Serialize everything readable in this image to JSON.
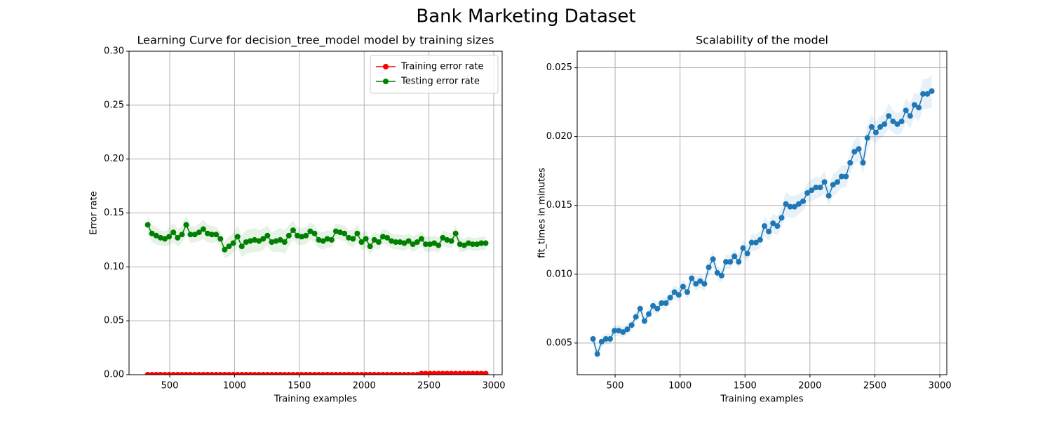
{
  "title": "Bank Marketing Dataset",
  "chart_data": [
    {
      "type": "line",
      "title": "Learning Curve for decision_tree_model model by training sizes",
      "xlabel": "Training examples",
      "ylabel": "Error rate",
      "x": [
        330,
        363,
        396,
        429,
        462,
        495,
        528,
        561,
        594,
        627,
        660,
        693,
        726,
        759,
        792,
        825,
        858,
        891,
        924,
        957,
        990,
        1023,
        1056,
        1089,
        1122,
        1155,
        1188,
        1221,
        1254,
        1287,
        1320,
        1353,
        1386,
        1419,
        1452,
        1485,
        1518,
        1551,
        1584,
        1617,
        1650,
        1683,
        1716,
        1749,
        1782,
        1815,
        1848,
        1881,
        1914,
        1947,
        1980,
        2013,
        2046,
        2079,
        2112,
        2145,
        2178,
        2211,
        2244,
        2277,
        2310,
        2343,
        2376,
        2409,
        2442,
        2475,
        2508,
        2541,
        2574,
        2607,
        2640,
        2673,
        2706,
        2739,
        2772,
        2805,
        2838,
        2871,
        2904,
        2938
      ],
      "series": [
        {
          "name": "Training error rate",
          "color": "#ff0000",
          "values": [
            0,
            0,
            0,
            0,
            0,
            0,
            0,
            0,
            0,
            0,
            0,
            0,
            0,
            0,
            0,
            0,
            0,
            0,
            0,
            0,
            0,
            0,
            0,
            0,
            0,
            0,
            0,
            0,
            0,
            0,
            0,
            0,
            0,
            0,
            0,
            0,
            0,
            0,
            0,
            0,
            0,
            0,
            0,
            0,
            0,
            0,
            0,
            0,
            0,
            0,
            0,
            0,
            0,
            0,
            0,
            0,
            0,
            0,
            0,
            0,
            0,
            0,
            0,
            0,
            0.001,
            0.001,
            0.001,
            0.001,
            0.001,
            0.001,
            0.001,
            0.001,
            0.001,
            0.001,
            0.001,
            0.001,
            0.001,
            0.001,
            0.001,
            0.001
          ]
        },
        {
          "name": "Testing error rate",
          "color": "#008000",
          "values": [
            0.139,
            0.131,
            0.129,
            0.127,
            0.126,
            0.128,
            0.132,
            0.127,
            0.13,
            0.139,
            0.13,
            0.13,
            0.132,
            0.135,
            0.131,
            0.13,
            0.13,
            0.126,
            0.116,
            0.119,
            0.122,
            0.128,
            0.119,
            0.123,
            0.124,
            0.125,
            0.124,
            0.126,
            0.129,
            0.123,
            0.124,
            0.125,
            0.123,
            0.129,
            0.134,
            0.129,
            0.128,
            0.129,
            0.133,
            0.131,
            0.125,
            0.124,
            0.126,
            0.125,
            0.133,
            0.132,
            0.131,
            0.127,
            0.126,
            0.131,
            0.123,
            0.126,
            0.119,
            0.125,
            0.123,
            0.128,
            0.127,
            0.124,
            0.123,
            0.123,
            0.122,
            0.124,
            0.121,
            0.123,
            0.126,
            0.121,
            0.121,
            0.122,
            0.12,
            0.127,
            0.125,
            0.124,
            0.131,
            0.121,
            0.12,
            0.122,
            0.121,
            0.121,
            0.122,
            0.122
          ],
          "errors": [
            0.009,
            0.008,
            0.008,
            0.007,
            0.007,
            0.008,
            0.009,
            0.008,
            0.008,
            0.009,
            0.008,
            0.007,
            0.008,
            0.009,
            0.008,
            0.008,
            0.007,
            0.007,
            0.008,
            0.009,
            0.009,
            0.01,
            0.01,
            0.011,
            0.011,
            0.011,
            0.01,
            0.01,
            0.009,
            0.009,
            0.01,
            0.011,
            0.011,
            0.01,
            0.009,
            0.008,
            0.008,
            0.008,
            0.008,
            0.008,
            0.008,
            0.008,
            0.008,
            0.007,
            0.007,
            0.007,
            0.007,
            0.007,
            0.008,
            0.008,
            0.008,
            0.008,
            0.008,
            0.008,
            0.007,
            0.007,
            0.007,
            0.007,
            0.007,
            0.007,
            0.007,
            0.007,
            0.007,
            0.007,
            0.007,
            0.007,
            0.007,
            0.007,
            0.007,
            0.007,
            0.007,
            0.007,
            0.007,
            0.007,
            0.006,
            0.006,
            0.006,
            0.006,
            0.006,
            0.006
          ]
        }
      ],
      "xlim": [
        186,
        3065
      ],
      "ylim": [
        0,
        0.3
      ],
      "xticks": [
        500,
        1000,
        1500,
        2000,
        2500,
        3000
      ],
      "yticks": [
        {
          "value": 0,
          "label": "0.00"
        },
        {
          "value": 0.05,
          "label": "0.05"
        },
        {
          "value": 0.1,
          "label": "0.10"
        },
        {
          "value": 0.15,
          "label": "0.15"
        },
        {
          "value": 0.2,
          "label": "0.20"
        },
        {
          "value": 0.25,
          "label": "0.25"
        },
        {
          "value": 0.3,
          "label": "0.30"
        }
      ],
      "grid": true,
      "legend": "upper right"
    },
    {
      "type": "line",
      "title": "Scalability of the model",
      "xlabel": "Training examples",
      "ylabel": "fit_times in minutes",
      "x": [
        330,
        363,
        396,
        429,
        462,
        495,
        528,
        561,
        594,
        627,
        660,
        693,
        726,
        759,
        792,
        825,
        858,
        891,
        924,
        957,
        990,
        1023,
        1056,
        1089,
        1122,
        1155,
        1188,
        1221,
        1254,
        1287,
        1320,
        1353,
        1386,
        1419,
        1452,
        1485,
        1518,
        1551,
        1584,
        1617,
        1650,
        1683,
        1716,
        1749,
        1782,
        1815,
        1848,
        1881,
        1914,
        1947,
        1980,
        2013,
        2046,
        2079,
        2112,
        2145,
        2178,
        2211,
        2244,
        2277,
        2310,
        2343,
        2376,
        2409,
        2442,
        2475,
        2508,
        2541,
        2574,
        2607,
        2640,
        2673,
        2706,
        2739,
        2772,
        2805,
        2838,
        2871,
        2904,
        2938
      ],
      "series": [
        {
          "color": "#1f77b4",
          "values": [
            0.0053,
            0.0042,
            0.0051,
            0.0053,
            0.0053,
            0.0059,
            0.0059,
            0.0058,
            0.006,
            0.0063,
            0.0069,
            0.0075,
            0.0066,
            0.0071,
            0.0077,
            0.0075,
            0.0079,
            0.0079,
            0.0083,
            0.0087,
            0.0085,
            0.0091,
            0.0087,
            0.0097,
            0.0093,
            0.0095,
            0.0093,
            0.0105,
            0.0111,
            0.0101,
            0.0099,
            0.0109,
            0.0109,
            0.0113,
            0.0109,
            0.0119,
            0.0115,
            0.0123,
            0.0123,
            0.0125,
            0.0135,
            0.0131,
            0.0137,
            0.0135,
            0.0141,
            0.0151,
            0.0149,
            0.0149,
            0.0151,
            0.0153,
            0.0159,
            0.0161,
            0.0163,
            0.0163,
            0.0167,
            0.0157,
            0.0165,
            0.0167,
            0.0171,
            0.0171,
            0.0181,
            0.0189,
            0.0191,
            0.0181,
            0.0199,
            0.0207,
            0.0203,
            0.0207,
            0.0209,
            0.0215,
            0.0211,
            0.0209,
            0.0211,
            0.0219,
            0.0215,
            0.0223,
            0.0221,
            0.0231,
            0.0231,
            0.0233
          ],
          "errors": [
            0.0005,
            0.0004,
            0.0004,
            0.0004,
            0.0004,
            0.0004,
            0.0004,
            0.0004,
            0.0004,
            0.0004,
            0.0004,
            0.0005,
            0.0004,
            0.0004,
            0.0005,
            0.0004,
            0.0004,
            0.0004,
            0.0005,
            0.0005,
            0.0005,
            0.0005,
            0.0005,
            0.0005,
            0.0005,
            0.0005,
            0.0005,
            0.0006,
            0.0006,
            0.0005,
            0.0005,
            0.0005,
            0.0005,
            0.0005,
            0.0005,
            0.0006,
            0.0006,
            0.0006,
            0.0006,
            0.0006,
            0.0007,
            0.0007,
            0.0007,
            0.0007,
            0.0007,
            0.0009,
            0.0008,
            0.0008,
            0.0007,
            0.0007,
            0.0007,
            0.0008,
            0.0008,
            0.0007,
            0.0008,
            0.0007,
            0.0008,
            0.0008,
            0.0008,
            0.0008,
            0.0008,
            0.0009,
            0.0009,
            0.0008,
            0.0009,
            0.0009,
            0.0008,
            0.0008,
            0.0008,
            0.0009,
            0.0008,
            0.0008,
            0.0008,
            0.0009,
            0.0009,
            0.0009,
            0.001,
            0.0011,
            0.0011,
            0.0012
          ]
        }
      ],
      "xlim": [
        208,
        3054
      ],
      "ylim": [
        0.0027,
        0.0262
      ],
      "xticks": [
        500,
        1000,
        1500,
        2000,
        2500,
        3000
      ],
      "yticks": [
        {
          "value": 0.005,
          "label": "0.005"
        },
        {
          "value": 0.01,
          "label": "0.010"
        },
        {
          "value": 0.015,
          "label": "0.015"
        },
        {
          "value": 0.02,
          "label": "0.020"
        },
        {
          "value": 0.025,
          "label": "0.025"
        }
      ],
      "grid": true
    }
  ]
}
